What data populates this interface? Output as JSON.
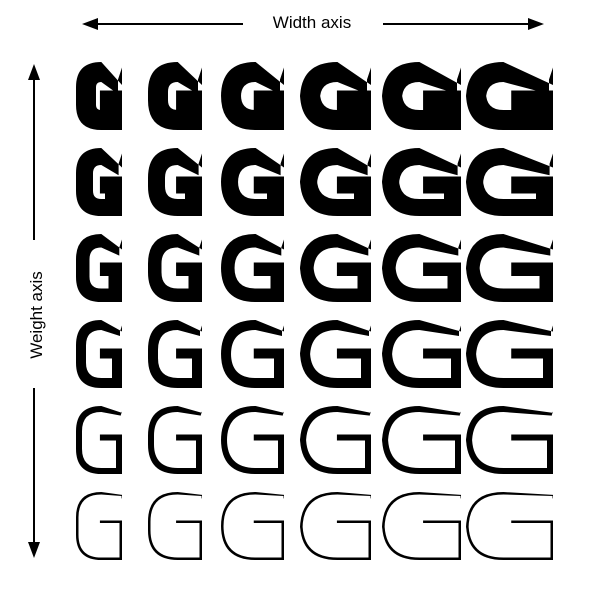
{
  "axes": {
    "width_label": "Width axis",
    "weight_label": "Weight axis"
  },
  "grid": {
    "glyph": "G",
    "columns": 6,
    "rows": 6,
    "color": "#000000"
  }
}
